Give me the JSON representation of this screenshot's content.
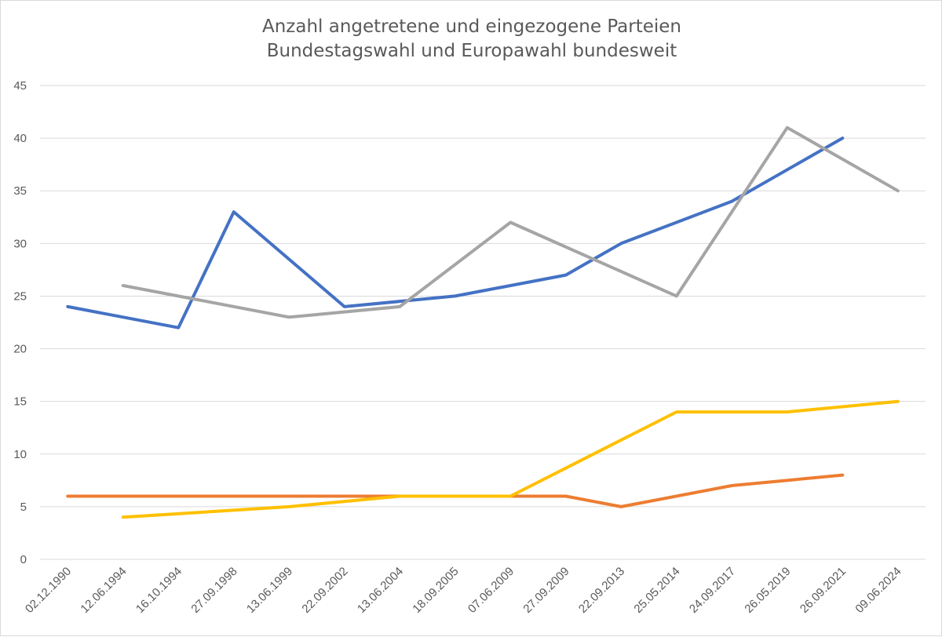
{
  "chart_data": {
    "type": "line",
    "title_lines": [
      "Anzahl angetretene und eingezogene Parteien",
      "Bundestagswahl und Europawahl bundesweit"
    ],
    "xlabel": "",
    "ylabel": "",
    "ylim": [
      0,
      45
    ],
    "yticks": [
      0,
      5,
      10,
      15,
      20,
      25,
      30,
      35,
      40,
      45
    ],
    "grid": true,
    "categories": [
      "02.12.1990",
      "12.06.1994",
      "16.10.1994",
      "27.09.1998",
      "13.06.1999",
      "22.09.2002",
      "13.06.2004",
      "18.09.2005",
      "07.06.2009",
      "27.09.2009",
      "22.09.2013",
      "25.05.2014",
      "24.09.2017",
      "26.05.2019",
      "26.09.2021",
      "09.06.2024"
    ],
    "series": [
      {
        "color": "#4472C4",
        "values": [
          24,
          null,
          22,
          33,
          null,
          24,
          null,
          25,
          null,
          27,
          30,
          null,
          34,
          null,
          40,
          null
        ]
      },
      {
        "color": "#A5A5A5",
        "values": [
          null,
          26,
          null,
          null,
          23,
          null,
          24,
          null,
          32,
          null,
          null,
          25,
          null,
          41,
          null,
          35
        ]
      },
      {
        "color": "#ED7D31",
        "values": [
          6,
          null,
          6,
          6,
          null,
          6,
          null,
          6,
          null,
          6,
          5,
          null,
          7,
          null,
          8,
          null
        ]
      },
      {
        "color": "#FFC000",
        "values": [
          null,
          4,
          null,
          null,
          5,
          null,
          6,
          null,
          6,
          null,
          null,
          14,
          null,
          14,
          null,
          15
        ]
      }
    ]
  }
}
